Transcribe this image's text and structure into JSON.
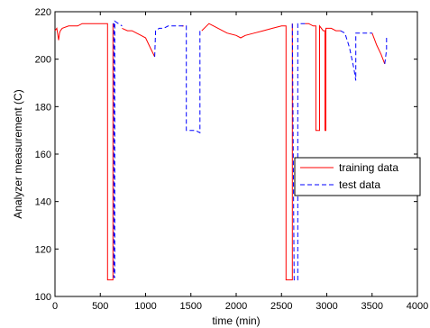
{
  "chart_data": {
    "type": "line",
    "title": "",
    "xlabel": "time (min)",
    "ylabel": "Analyzer measurement (C)",
    "xlim": [
      0,
      4000
    ],
    "ylim": [
      100,
      220
    ],
    "xticks": [
      "0",
      "500",
      "1000",
      "1500",
      "2000",
      "2500",
      "3000",
      "3500",
      "4000"
    ],
    "yticks": [
      "100",
      "120",
      "140",
      "160",
      "180",
      "200",
      "220"
    ],
    "grid": false,
    "legend_position": "right",
    "series": [
      {
        "name": "training data",
        "color": "#ff0000",
        "style": "solid",
        "segments": [
          [
            [
              0,
              212
            ],
            [
              20,
              213
            ],
            [
              40,
              208
            ],
            [
              50,
              211
            ],
            [
              60,
              212
            ],
            [
              80,
              213
            ],
            [
              150,
              214
            ],
            [
              200,
              214
            ],
            [
              250,
              214
            ],
            [
              300,
              215
            ],
            [
              400,
              215
            ],
            [
              500,
              215
            ],
            [
              580,
              215
            ],
            [
              580,
              107
            ],
            [
              640,
              107
            ],
            [
              640,
              215
            ]
          ],
          [
            [
              740,
              213
            ],
            [
              800,
              212
            ],
            [
              850,
              212
            ],
            [
              900,
              211
            ],
            [
              950,
              210
            ],
            [
              1000,
              209
            ],
            [
              1050,
              205
            ],
            [
              1100,
              201
            ]
          ],
          [
            [
              1400,
              214
            ],
            [
              1420,
              214
            ]
          ],
          [
            [
              1620,
              212
            ],
            [
              1700,
              215
            ],
            [
              1750,
              214
            ],
            [
              1800,
              213
            ],
            [
              1900,
              211
            ],
            [
              2000,
              210
            ],
            [
              2050,
              209
            ],
            [
              2100,
              210
            ],
            [
              2200,
              211
            ],
            [
              2300,
              212
            ],
            [
              2400,
              213
            ],
            [
              2500,
              214
            ],
            [
              2550,
              214
            ],
            [
              2550,
              107
            ],
            [
              2620,
              107
            ],
            [
              2620,
              215
            ]
          ],
          [
            [
              2760,
              215
            ],
            [
              2800,
              215
            ],
            [
              2850,
              214
            ],
            [
              2880,
              214
            ],
            [
              2880,
              170
            ],
            [
              2920,
              170
            ],
            [
              2920,
              214
            ],
            [
              2960,
              212
            ],
            [
              2980,
              212
            ],
            [
              2980,
              170
            ],
            [
              2990,
              170
            ],
            [
              2990,
              213
            ],
            [
              3050,
              213
            ],
            [
              3100,
              212
            ],
            [
              3150,
              212
            ]
          ],
          [
            [
              3500,
              211
            ],
            [
              3550,
              206
            ],
            [
              3600,
              202
            ],
            [
              3640,
              198
            ]
          ]
        ]
      },
      {
        "name": "test data",
        "color": "#0000ff",
        "style": "dashed",
        "segments": [
          [
            [
              640,
              215
            ],
            [
              650,
              215
            ],
            [
              650,
              108
            ],
            [
              660,
              108
            ],
            [
              660,
              216
            ],
            [
              700,
              215
            ],
            [
              740,
              214
            ]
          ],
          [
            [
              1100,
              201
            ],
            [
              1110,
              212
            ],
            [
              1150,
              213
            ],
            [
              1200,
              213
            ],
            [
              1250,
              214
            ],
            [
              1300,
              214
            ],
            [
              1400,
              214
            ],
            [
              1420,
              214
            ],
            [
              1450,
              214
            ],
            [
              1450,
              170
            ],
            [
              1500,
              170
            ],
            [
              1550,
              170
            ],
            [
              1600,
              169
            ],
            [
              1600,
              212
            ],
            [
              1620,
              212
            ]
          ],
          [
            [
              2620,
              215
            ],
            [
              2640,
              107
            ],
            [
              2680,
              107
            ],
            [
              2680,
              215
            ],
            [
              2700,
              215
            ],
            [
              2760,
              215
            ]
          ],
          [
            [
              3150,
              212
            ],
            [
              3200,
              211
            ],
            [
              3250,
              205
            ],
            [
              3300,
              196
            ],
            [
              3320,
              191
            ],
            [
              3320,
              211
            ],
            [
              3350,
              211
            ],
            [
              3400,
              211
            ],
            [
              3500,
              211
            ]
          ],
          [
            [
              3640,
              198
            ],
            [
              3660,
              204
            ],
            [
              3660,
              210
            ]
          ]
        ]
      }
    ]
  }
}
